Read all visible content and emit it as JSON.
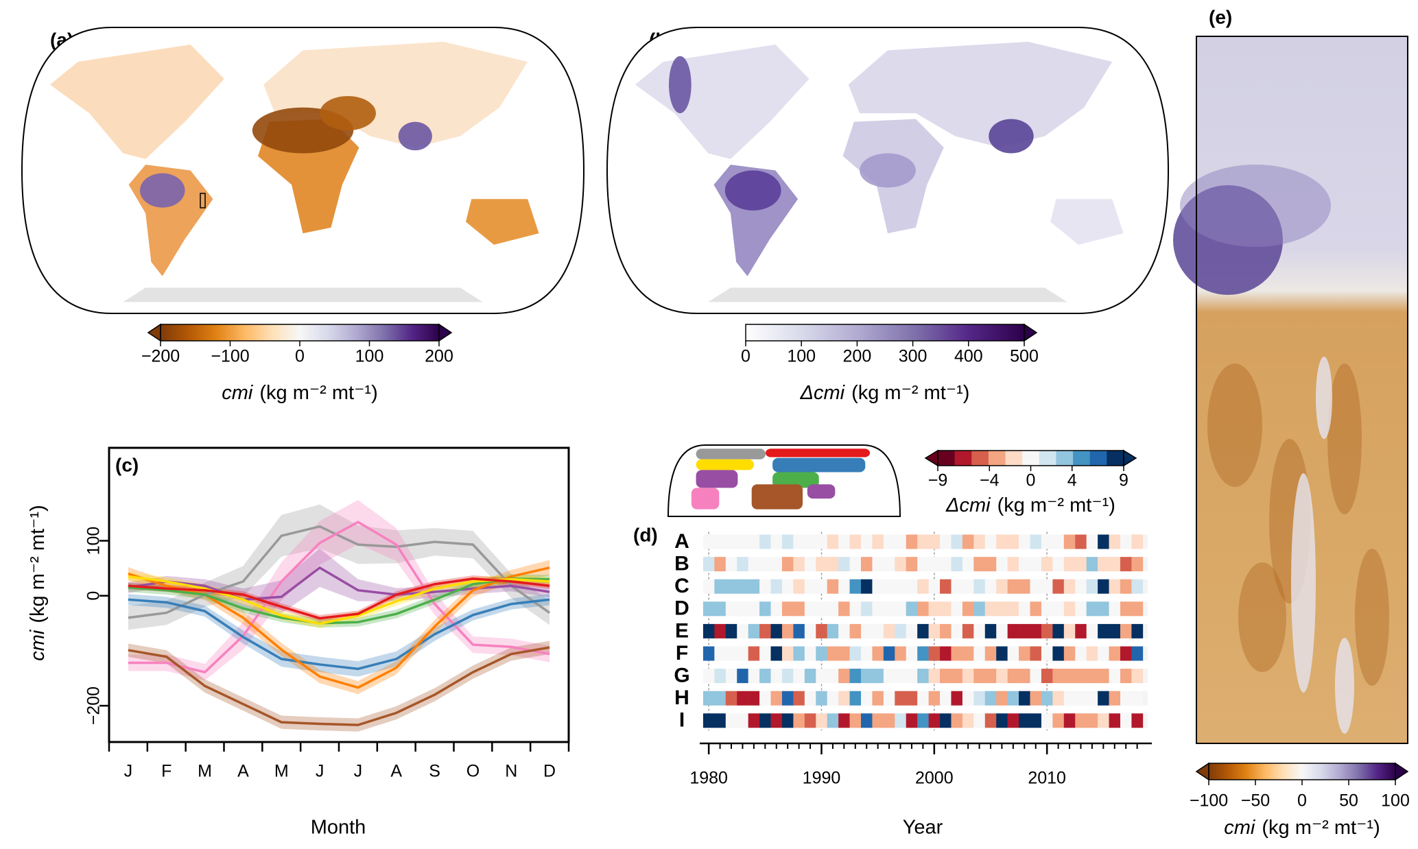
{
  "chart_data": [
    {
      "type": "map",
      "panel": "(a)",
      "colorbar": {
        "lim": [
          -200,
          200
        ],
        "extend": "both",
        "ticks": [
          {
            "value": -200,
            "label": "−200"
          },
          {
            "value": -100,
            "label": "−100"
          },
          0,
          100,
          200
        ],
        "colors": [
          "#7f3b08",
          "#b35806",
          "#e08214",
          "#fdb863",
          "#fee0b6",
          "#f7f7f7",
          "#d8daeb",
          "#b2abd2",
          "#8073ac",
          "#542788",
          "#2d004b"
        ],
        "var": "cmi",
        "units": "(kg m⁻² mt⁻¹)"
      }
    },
    {
      "type": "map",
      "panel": "(b)",
      "colorbar": {
        "lim": [
          0,
          500
        ],
        "extend": "max",
        "ticks": [
          0,
          100,
          200,
          300,
          400,
          500
        ],
        "colors": [
          "#ffffff",
          "#d8daeb",
          "#b2abd2",
          "#8073ac",
          "#542788",
          "#2d004b"
        ],
        "var": "Δcmi",
        "units": "(kg m⁻² mt⁻¹)"
      }
    },
    {
      "type": "line",
      "panel": "(c)",
      "categories": [
        "J",
        "F",
        "M",
        "A",
        "M",
        "J",
        "J",
        "A",
        "S",
        "O",
        "N",
        "D"
      ],
      "xlabel": "Month",
      "ylabel_var": "cmi",
      "ylabel_units": "(kg m⁻² mt⁻¹)",
      "ylim": [
        -266,
        269
      ],
      "yticks": [
        {
          "value": -200,
          "label": "−200"
        },
        0,
        100
      ],
      "series": [
        {
          "color": "#999999",
          "values": [
            -40,
            -31,
            2,
            26,
            109,
            126,
            93,
            89,
            98,
            93,
            18,
            -31
          ],
          "errors": [
            22,
            22,
            22,
            28,
            38,
            40,
            35,
            30,
            25,
            25,
            22,
            22
          ]
        },
        {
          "color": "#f781bf",
          "values": [
            -122,
            -122,
            -139,
            -73,
            26,
            96,
            134,
            93,
            -15,
            -89,
            -93,
            -106
          ],
          "errors": [
            15,
            15,
            15,
            25,
            35,
            40,
            40,
            30,
            20,
            15,
            15,
            15
          ]
        },
        {
          "color": "#a65628",
          "values": [
            -99,
            -111,
            -164,
            -197,
            -230,
            -233,
            -235,
            -213,
            -180,
            -139,
            -106,
            -94
          ],
          "errors": [
            12,
            12,
            12,
            12,
            12,
            12,
            12,
            12,
            12,
            12,
            12,
            12
          ]
        },
        {
          "color": "#984ea3",
          "values": [
            15,
            26,
            18,
            -7,
            -2,
            51,
            10,
            2,
            7,
            13,
            18,
            7
          ],
          "errors": [
            10,
            10,
            12,
            20,
            30,
            35,
            20,
            12,
            10,
            10,
            10,
            10
          ]
        },
        {
          "color": "#377eb8",
          "values": [
            -7,
            -12,
            -28,
            -75,
            -115,
            -125,
            -133,
            -115,
            -70,
            -35,
            -15,
            -7
          ],
          "errors": [
            10,
            10,
            10,
            12,
            14,
            14,
            14,
            14,
            12,
            10,
            10,
            10
          ]
        },
        {
          "color": "#ff7f00",
          "values": [
            40,
            18,
            2,
            -40,
            -98,
            -147,
            -167,
            -131,
            -56,
            10,
            35,
            51
          ],
          "errors": [
            12,
            10,
            10,
            12,
            12,
            12,
            12,
            12,
            12,
            12,
            12,
            14
          ]
        },
        {
          "color": "#4daf4a",
          "values": [
            15,
            10,
            2,
            -23,
            -40,
            -50,
            -48,
            -33,
            -7,
            21,
            31,
            30
          ],
          "errors": [
            8,
            8,
            8,
            8,
            8,
            8,
            8,
            8,
            8,
            8,
            8,
            8
          ]
        },
        {
          "color": "#ffdd00",
          "values": [
            35,
            26,
            13,
            -7,
            -36,
            -51,
            -36,
            -10,
            13,
            26,
            30,
            26
          ],
          "errors": [
            8,
            8,
            8,
            8,
            8,
            8,
            8,
            8,
            8,
            8,
            8,
            8
          ]
        },
        {
          "color": "#e41a1c",
          "values": [
            18,
            13,
            10,
            2,
            -20,
            -41,
            -33,
            2,
            21,
            31,
            26,
            18
          ],
          "errors": [
            6,
            6,
            6,
            6,
            6,
            6,
            6,
            6,
            6,
            6,
            6,
            6
          ]
        }
      ]
    },
    {
      "type": "heatmap",
      "panel": "(d)",
      "xlabel": "Year",
      "x": [
        1980,
        1981,
        1982,
        1983,
        1984,
        1985,
        1986,
        1987,
        1988,
        1989,
        1990,
        1991,
        1992,
        1993,
        1994,
        1995,
        1996,
        1997,
        1998,
        1999,
        2000,
        2001,
        2002,
        2003,
        2004,
        2005,
        2006,
        2007,
        2008,
        2009,
        2010,
        2011,
        2012,
        2013,
        2014,
        2015,
        2016,
        2017,
        2018
      ],
      "xlim": [
        1979.2,
        2019.3
      ],
      "xticks": [
        1980,
        1990,
        2000,
        2010
      ],
      "rows": [
        {
          "name": "A",
          "color": "#e41a1c",
          "values": [
            0,
            0,
            0,
            0,
            0,
            1,
            0,
            2,
            0,
            0,
            0,
            -2,
            0,
            -1,
            0,
            -1,
            0,
            0,
            -3,
            -1,
            -2,
            0,
            2,
            -4,
            -2,
            0,
            -2,
            -2,
            0,
            1,
            0,
            0,
            -4,
            -5,
            0,
            9,
            -2,
            0,
            -2
          ]
        },
        {
          "name": "B",
          "color": "#ffdd00",
          "values": [
            2,
            -4,
            0,
            1,
            0,
            0,
            0,
            -3,
            -2,
            0,
            -2,
            -2,
            1,
            0,
            -3,
            0,
            0,
            -2,
            -4,
            0,
            0,
            0,
            2,
            0,
            -3,
            -3,
            0,
            -2,
            0,
            0,
            -2,
            0,
            -2,
            -2,
            3,
            -2,
            -2,
            -5,
            -3
          ]
        },
        {
          "name": "C",
          "color": "#377eb8",
          "values": [
            0,
            3,
            3,
            3,
            3,
            0,
            2,
            0,
            -1,
            0,
            0,
            -3,
            0,
            6,
            9,
            0,
            0,
            0,
            0,
            -1,
            0,
            -5,
            0,
            0,
            2,
            0,
            -1,
            -3,
            -3,
            0,
            0,
            -5,
            -2,
            0,
            2,
            9,
            -2,
            -4,
            2
          ]
        },
        {
          "name": "D",
          "color": "#4daf4a",
          "values": [
            3,
            3,
            0,
            0,
            0,
            4,
            0,
            -3,
            -3,
            0,
            0,
            0,
            -3,
            0,
            2,
            0,
            0,
            0,
            3,
            -3,
            -1,
            -2,
            0,
            -4,
            4,
            -2,
            -2,
            -1,
            0,
            -4,
            0,
            0,
            -1,
            0,
            3,
            3,
            0,
            -3,
            -4
          ]
        },
        {
          "name": "E",
          "color": "#984ea3",
          "values": [
            9,
            -7,
            9,
            0,
            3,
            -6,
            9,
            -3,
            7,
            0,
            -5,
            3,
            0,
            -3,
            0,
            0,
            -2,
            2,
            0,
            9,
            -2,
            -4,
            0,
            -6,
            0,
            9,
            0,
            -8,
            -8,
            -8,
            -5,
            9,
            -2,
            -7,
            0,
            9,
            9,
            -4,
            9
          ]
        },
        {
          "name": "F",
          "color": "#ff7f00",
          "values": [
            7,
            0,
            0,
            0,
            -6,
            0,
            9,
            -2,
            4,
            0,
            4,
            -4,
            -4,
            2,
            0,
            -4,
            7,
            -3,
            0,
            6,
            -6,
            -7,
            -3,
            -4,
            0,
            -3,
            9,
            0,
            -3,
            -5,
            0,
            9,
            -3,
            0,
            -2,
            0,
            -3,
            -8,
            8
          ]
        },
        {
          "name": "G",
          "color": "#a65628",
          "values": [
            0,
            2,
            0,
            7,
            0,
            3,
            0,
            2,
            0,
            3,
            0,
            0,
            -3,
            6,
            3,
            3,
            0,
            0,
            0,
            4,
            -2,
            -3,
            -3,
            -2,
            -3,
            -3,
            -2,
            -4,
            -3,
            0,
            -5,
            -3,
            -3,
            -3,
            -3,
            -3,
            0,
            -4,
            -2
          ]
        },
        {
          "name": "H",
          "color": "#f781bf",
          "values": [
            3,
            3,
            -6,
            -8,
            -7,
            0,
            -3,
            8,
            -5,
            0,
            3,
            0,
            -2,
            5,
            0,
            -4,
            0,
            -5,
            -5,
            0,
            -4,
            0,
            -8,
            0,
            2,
            3,
            -3,
            4,
            9,
            -4,
            3,
            -2,
            0,
            0,
            0,
            9,
            -3,
            0,
            0
          ]
        },
        {
          "name": "I",
          "color": "#999999",
          "values": [
            9,
            9,
            0,
            0,
            -8,
            9,
            -7,
            9,
            -3,
            -5,
            -2,
            4,
            -7,
            -3,
            7,
            -4,
            -3,
            2,
            -8,
            5,
            -7,
            9,
            -3,
            -2,
            0,
            -5,
            9,
            -7,
            9,
            9,
            0,
            -4,
            -8,
            -4,
            -4,
            -2,
            -7,
            0,
            -7
          ]
        }
      ],
      "colorbar": {
        "lim": [
          -9,
          9
        ],
        "extend": "both",
        "discrete": true,
        "ticks": [
          {
            "value": -9,
            "label": "−9"
          },
          {
            "value": -4,
            "label": "−4"
          },
          0,
          4,
          9
        ],
        "colors": [
          "#67001f",
          "#b2182b",
          "#d6604d",
          "#f4a582",
          "#fddbc7",
          "#f7f7f7",
          "#d1e5f0",
          "#92c5de",
          "#4393c3",
          "#2166ac",
          "#053061"
        ],
        "var": "Δcmi",
        "units": "(kg m⁻² mt⁻¹)"
      }
    },
    {
      "type": "raster",
      "panel": "(e)",
      "colorbar": {
        "lim": [
          -100,
          100
        ],
        "extend": "both",
        "ticks": [
          {
            "value": -100,
            "label": "−100"
          },
          {
            "value": -50,
            "label": "−50"
          },
          0,
          50,
          100
        ],
        "colors": [
          "#7f3b08",
          "#b35806",
          "#e08214",
          "#fdb863",
          "#fee0b6",
          "#f7f7f7",
          "#d8daeb",
          "#b2abd2",
          "#8073ac",
          "#542788",
          "#2d004b"
        ],
        "var": "cmi",
        "units": "(kg m⁻² mt⁻¹)"
      }
    }
  ]
}
